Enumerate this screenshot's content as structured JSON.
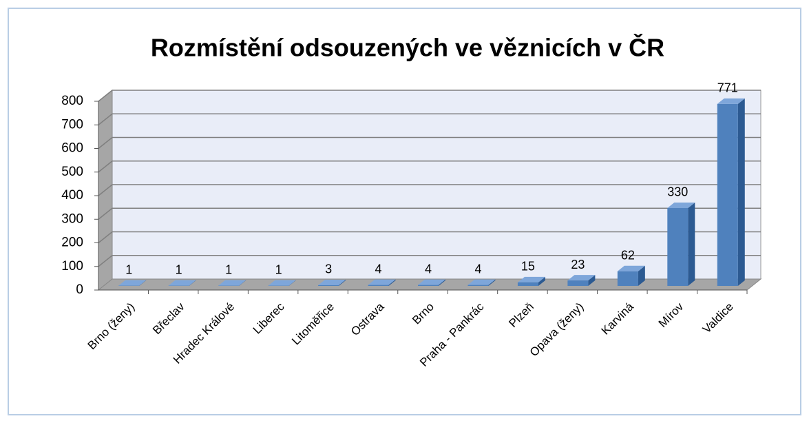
{
  "chart_data": {
    "type": "bar3d",
    "title": "Rozmístění odsouzených  ve věznicích v ČR",
    "categories": [
      "Brno (ženy)",
      "Břeclav",
      "Hradec Králové",
      "Liberec",
      "Litoměřice",
      "Ostrava",
      "Brno",
      "Praha - Pankrác",
      "Plzeň",
      "Opava (ženy)",
      "Karviná",
      "Mírov",
      "Valdice"
    ],
    "values": [
      1,
      1,
      1,
      1,
      3,
      4,
      4,
      4,
      15,
      23,
      62,
      330,
      771
    ],
    "color": "#4f81bd",
    "data_labels": true,
    "ylim": [
      0,
      800
    ],
    "yticks": [
      0,
      100,
      200,
      300,
      400,
      500,
      600,
      700,
      800
    ],
    "grid": true
  }
}
